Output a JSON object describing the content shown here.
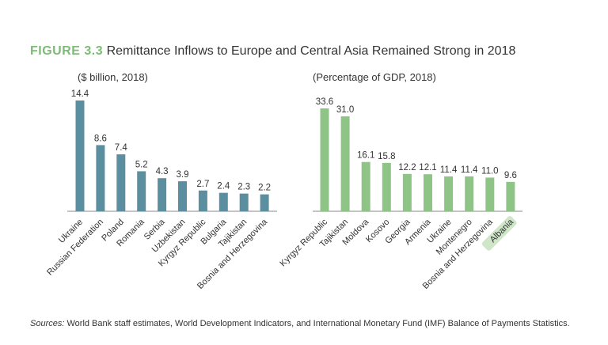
{
  "figure": {
    "number": "FIGURE 3.3",
    "title": "Remittance Inflows to Europe and Central Asia Remained Strong in 2018"
  },
  "chart_data": [
    {
      "type": "bar",
      "title": "($ billion, 2018)",
      "categories": [
        "Ukraine",
        "Russian Federation",
        "Poland",
        "Romania",
        "Serbia",
        "Uzbekistan",
        "Kyrgyz Republic",
        "Bulgaria",
        "Tajikistan",
        "Bosnia and Herzegovina"
      ],
      "values": [
        14.4,
        8.6,
        7.4,
        5.2,
        4.3,
        3.9,
        2.7,
        2.4,
        2.3,
        2.2
      ],
      "value_labels": [
        "14.4",
        "8.6",
        "7.4",
        "5.2",
        "4.3",
        "3.9",
        "2.7",
        "2.4",
        "2.3",
        "2.2"
      ],
      "ylim": [
        0,
        14.4
      ],
      "color": "#5b8fa0"
    },
    {
      "type": "bar",
      "title": "(Percentage of GDP, 2018)",
      "categories": [
        "Kyrgyz Republic",
        "Tajikistan",
        "Moldova",
        "Kosovo",
        "Georgia",
        "Armenia",
        "Ukraine",
        "Montenegro",
        "Bosnia and Herzegovina",
        "Albania"
      ],
      "values": [
        33.6,
        31.0,
        16.1,
        15.8,
        12.2,
        12.1,
        11.4,
        11.4,
        11.0,
        9.6
      ],
      "value_labels": [
        "33.6",
        "31.0",
        "16.1",
        "15.8",
        "12.2",
        "12.1",
        "11.4",
        "11.4",
        "11.0",
        "9.6"
      ],
      "ylim": [
        0,
        33.6
      ],
      "color": "#8fc487",
      "highlight_category": "Albania",
      "highlight_color": "#cfe6c9"
    }
  ],
  "sources": {
    "label": "Sources:",
    "text": " World Bank staff estimates, World Development Indicators, and International Monetary Fund (IMF) Balance of Payments Statistics."
  }
}
